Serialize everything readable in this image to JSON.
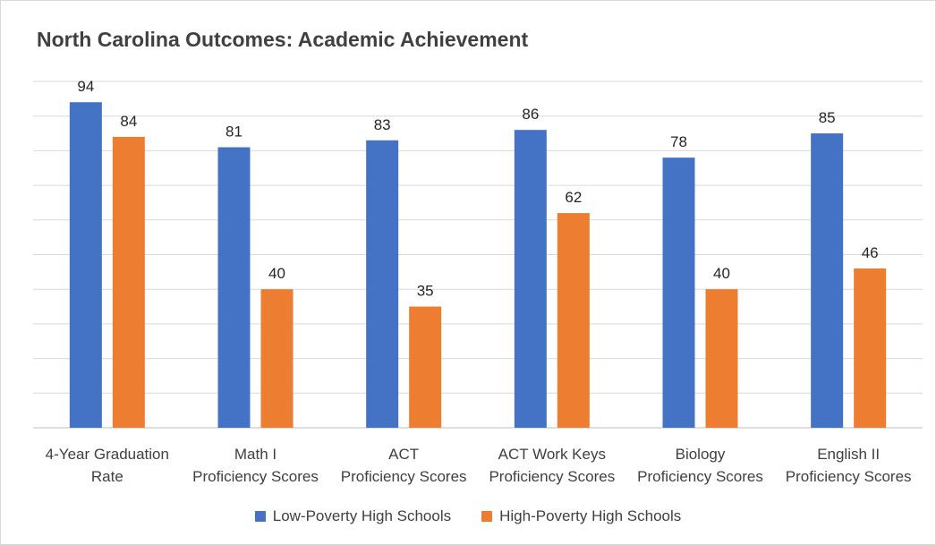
{
  "chart_data": {
    "type": "bar",
    "title": "North Carolina Outcomes: Academic Achievement",
    "categories": [
      [
        "4-Year Graduation",
        "Rate"
      ],
      [
        "Math I",
        "Proficiency Scores"
      ],
      [
        "ACT",
        "Proficiency Scores"
      ],
      [
        "ACT Work Keys",
        "Proficiency Scores"
      ],
      [
        "Biology",
        "Proficiency Scores"
      ],
      [
        "English II",
        "Proficiency Scores"
      ]
    ],
    "series": [
      {
        "name": "Low-Poverty High Schools",
        "color": "#4472C4",
        "values": [
          94,
          81,
          83,
          86,
          78,
          85
        ]
      },
      {
        "name": "High-Poverty High Schools",
        "color": "#ED7D31",
        "values": [
          84,
          40,
          35,
          62,
          40,
          46
        ]
      }
    ],
    "ylim": [
      0,
      100
    ],
    "grid": true,
    "legend_position": "bottom",
    "data_labels": true
  }
}
